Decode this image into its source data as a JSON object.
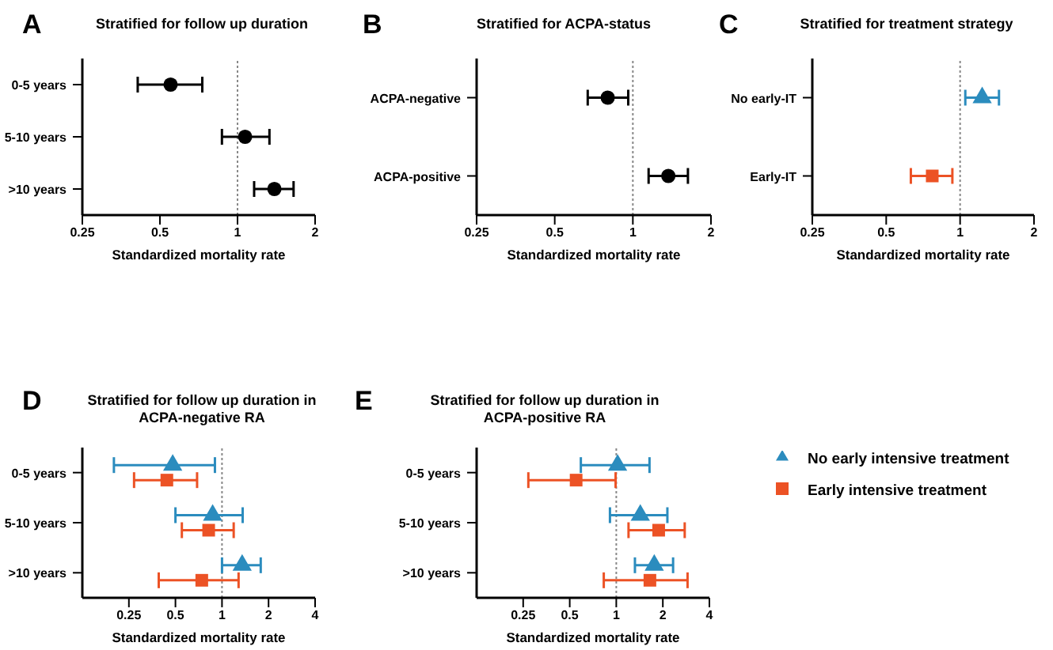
{
  "chart_data": [
    {
      "type": "scatter",
      "orientation": "horizontal",
      "title": "Stratified for follow up duration",
      "annotations": [
        "A"
      ],
      "xlabel": "Standardized mortality rate",
      "categories": [
        "0-5 years",
        "5-10 years",
        ">10 years"
      ],
      "log": "x",
      "xlim": [
        0.25,
        2
      ],
      "xticks": [
        0.25,
        0.5,
        1,
        2
      ],
      "ref_lines": [
        {
          "axis": "x",
          "value": 1,
          "line_style": "dotted",
          "color": "#888888"
        }
      ],
      "series": [
        {
          "color": "#000000",
          "marker": "circle",
          "values": [
            0.55,
            1.07,
            1.39
          ],
          "errors": [
            [
              0.41,
              0.73
            ],
            [
              0.87,
              1.33
            ],
            [
              1.16,
              1.65
            ]
          ]
        }
      ]
    },
    {
      "type": "scatter",
      "orientation": "horizontal",
      "title": "Stratified for ACPA-status",
      "annotations": [
        "B"
      ],
      "xlabel": "Standardized mortality rate",
      "categories": [
        "ACPA-negative",
        "ACPA-positive"
      ],
      "log": "x",
      "xlim": [
        0.25,
        2
      ],
      "xticks": [
        0.25,
        0.5,
        1,
        2
      ],
      "ref_lines": [
        {
          "axis": "x",
          "value": 1,
          "line_style": "dotted",
          "color": "#888888"
        }
      ],
      "series": [
        {
          "color": "#000000",
          "marker": "circle",
          "values": [
            0.8,
            1.37
          ],
          "errors": [
            [
              0.67,
              0.96
            ],
            [
              1.15,
              1.63
            ]
          ]
        }
      ]
    },
    {
      "type": "scatter",
      "orientation": "horizontal",
      "title": "Stratified for treatment strategy",
      "annotations": [
        "C"
      ],
      "xlabel": "Standardized mortality rate",
      "categories": [
        "No early-IT",
        "Early-IT"
      ],
      "log": "x",
      "xlim": [
        0.25,
        2
      ],
      "xticks": [
        0.25,
        0.5,
        1,
        2
      ],
      "ref_lines": [
        {
          "axis": "x",
          "value": 1,
          "line_style": "dotted",
          "color": "#888888"
        }
      ],
      "series": [
        {
          "color": "#2b8cbe",
          "marker": "triangle",
          "values": [
            1.23,
            null
          ],
          "errors": [
            [
              1.05,
              1.44
            ],
            null
          ]
        },
        {
          "color": "#ec5225",
          "marker": "square",
          "values": [
            null,
            0.77
          ],
          "errors": [
            null,
            [
              0.63,
              0.93
            ]
          ]
        }
      ]
    },
    {
      "type": "scatter",
      "orientation": "horizontal",
      "title": "Stratified for follow up duration in ACPA-negative RA",
      "annotations": [
        "D"
      ],
      "xlabel": "Standardized mortality rate",
      "categories": [
        "0-5 years",
        "5-10 years",
        ">10 years"
      ],
      "log": "x",
      "xlim": [
        0.125,
        4
      ],
      "xticks": [
        0.25,
        0.5,
        1,
        2,
        4
      ],
      "ref_lines": [
        {
          "axis": "x",
          "value": 1,
          "line_style": "dotted",
          "color": "#888888"
        }
      ],
      "series": [
        {
          "color": "#2b8cbe",
          "marker": "triangle",
          "values": [
            0.48,
            0.87,
            1.35
          ],
          "errors": [
            [
              0.2,
              0.9
            ],
            [
              0.5,
              1.36
            ],
            [
              1.0,
              1.78
            ]
          ]
        },
        {
          "color": "#ec5225",
          "marker": "square",
          "values": [
            0.44,
            0.82,
            0.74
          ],
          "errors": [
            [
              0.27,
              0.69
            ],
            [
              0.55,
              1.19
            ],
            [
              0.39,
              1.28
            ]
          ]
        }
      ]
    },
    {
      "type": "scatter",
      "orientation": "horizontal",
      "title": "Stratified for follow up duration in ACPA-positive RA",
      "annotations": [
        "E"
      ],
      "xlabel": "Standardized mortality rate",
      "categories": [
        "0-5 years",
        "5-10 years",
        ">10 years"
      ],
      "log": "x",
      "xlim": [
        0.125,
        4
      ],
      "xticks": [
        0.25,
        0.5,
        1,
        2,
        4
      ],
      "ref_lines": [
        {
          "axis": "x",
          "value": 1,
          "line_style": "dotted",
          "color": "#888888"
        }
      ],
      "legend": "right",
      "series": [
        {
          "name": "No early intensive treatment",
          "color": "#2b8cbe",
          "marker": "triangle",
          "values": [
            1.02,
            1.43,
            1.76
          ],
          "errors": [
            [
              0.59,
              1.64
            ],
            [
              0.91,
              2.14
            ],
            [
              1.32,
              2.33
            ]
          ]
        },
        {
          "name": "Early intensive treatment",
          "color": "#ec5225",
          "marker": "square",
          "values": [
            0.55,
            1.88,
            1.65
          ],
          "errors": [
            [
              0.27,
              0.99
            ],
            [
              1.2,
              2.77
            ],
            [
              0.83,
              2.89
            ]
          ]
        }
      ]
    }
  ]
}
